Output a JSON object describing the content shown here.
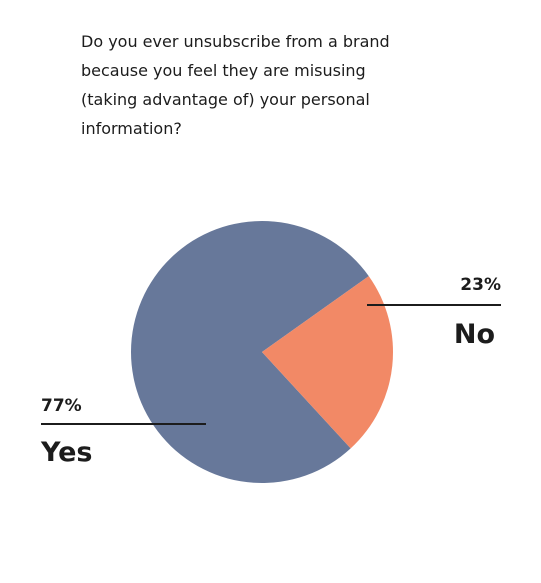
{
  "question": {
    "lines": [
      "Do you ever unsubscribe from a brand",
      "because you feel they are misusing",
      "(taking advantage of) your personal",
      "information?"
    ]
  },
  "colors": {
    "yes": "#67789a",
    "no": "#f28966",
    "text": "#1c1c1c"
  },
  "chart_data": {
    "type": "pie",
    "title": "Do you ever unsubscribe from a brand because you feel they are misusing (taking advantage of) your personal information?",
    "slices": [
      {
        "label": "Yes",
        "value": 77,
        "value_label": "77%",
        "color": "#67789a"
      },
      {
        "label": "No",
        "value": 23,
        "value_label": "23%",
        "color": "#f28966"
      }
    ]
  }
}
